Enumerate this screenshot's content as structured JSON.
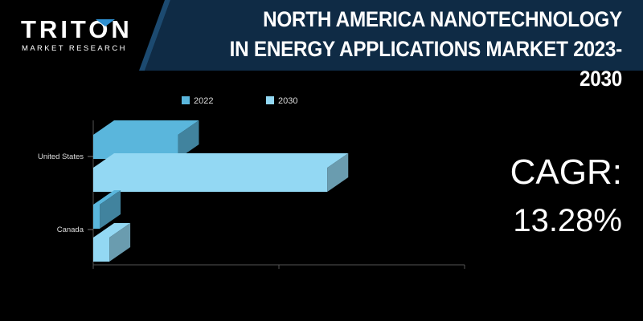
{
  "header": {
    "title_line1": "NORTH AMERICA NANOTECHNOLOGY",
    "title_line2": "IN ENERGY APPLICATIONS MARKET 2023-2030"
  },
  "logo": {
    "word": "TRITON",
    "tagline": "MARKET RESEARCH"
  },
  "cagr": {
    "label": "CAGR:",
    "value": "13.28%"
  },
  "colors": {
    "header_panel": "#0f2b45",
    "header_accent": "#2e8fd0",
    "series_2022": "#5ab6dc",
    "series_2030": "#93d8f3"
  },
  "chart_data": {
    "type": "bar",
    "orientation": "horizontal",
    "style": "3d",
    "categories": [
      "United States",
      "Canada"
    ],
    "series": [
      {
        "name": "2022",
        "values": [
          105,
          8
        ]
      },
      {
        "name": "2030",
        "values": [
          290,
          20
        ]
      }
    ],
    "xlim": [
      0,
      460
    ],
    "legend": "top",
    "grid": false
  }
}
